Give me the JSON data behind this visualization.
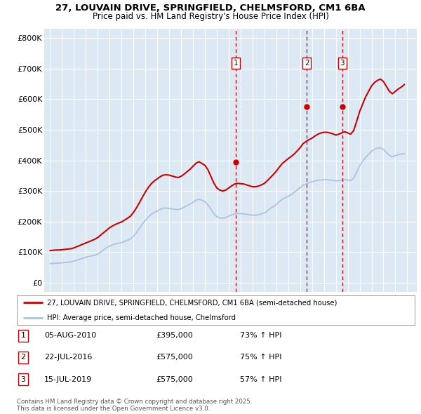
{
  "title_line1": "27, LOUVAIN DRIVE, SPRINGFIELD, CHELMSFORD, CM1 6BA",
  "title_line2": "Price paid vs. HM Land Registry's House Price Index (HPI)",
  "bg_color": "#dce9f5",
  "grid_color": "#ffffff",
  "red_line_color": "#cc0000",
  "blue_line_color": "#aac4e0",
  "ytick_labels": [
    "£0",
    "£100K",
    "£200K",
    "£300K",
    "£400K",
    "£500K",
    "£600K",
    "£700K",
    "£800K"
  ],
  "yticks": [
    0,
    100000,
    200000,
    300000,
    400000,
    500000,
    600000,
    700000,
    800000
  ],
  "xlim_start": 1994.5,
  "xlim_end": 2025.8,
  "ylim_min": -30000,
  "ylim_max": 830000,
  "sale_dates": [
    "05-AUG-2010",
    "22-JUL-2016",
    "15-JUL-2019"
  ],
  "sale_years": [
    2010.59,
    2016.55,
    2019.54
  ],
  "sale_prices": [
    395000,
    575000,
    575000
  ],
  "sale_prices_display": [
    "£395,000",
    "£575,000",
    "£575,000"
  ],
  "sale_labels": [
    "1",
    "2",
    "3"
  ],
  "sale_pct": [
    "73% ↑ HPI",
    "75% ↑ HPI",
    "57% ↑ HPI"
  ],
  "legend_red": "27, LOUVAIN DRIVE, SPRINGFIELD, CHELMSFORD, CM1 6BA (semi-detached house)",
  "legend_blue": "HPI: Average price, semi-detached house, Chelmsford",
  "footer": "Contains HM Land Registry data © Crown copyright and database right 2025.\nThis data is licensed under the Open Government Licence v3.0.",
  "hpi_years": [
    1995.0,
    1995.25,
    1995.5,
    1995.75,
    1996.0,
    1996.25,
    1996.5,
    1996.75,
    1997.0,
    1997.25,
    1997.5,
    1997.75,
    1998.0,
    1998.25,
    1998.5,
    1998.75,
    1999.0,
    1999.25,
    1999.5,
    1999.75,
    2000.0,
    2000.25,
    2000.5,
    2000.75,
    2001.0,
    2001.25,
    2001.5,
    2001.75,
    2002.0,
    2002.25,
    2002.5,
    2002.75,
    2003.0,
    2003.25,
    2003.5,
    2003.75,
    2004.0,
    2004.25,
    2004.5,
    2004.75,
    2005.0,
    2005.25,
    2005.5,
    2005.75,
    2006.0,
    2006.25,
    2006.5,
    2006.75,
    2007.0,
    2007.25,
    2007.5,
    2007.75,
    2008.0,
    2008.25,
    2008.5,
    2008.75,
    2009.0,
    2009.25,
    2009.5,
    2009.75,
    2010.0,
    2010.25,
    2010.5,
    2010.75,
    2011.0,
    2011.25,
    2011.5,
    2011.75,
    2012.0,
    2012.25,
    2012.5,
    2012.75,
    2013.0,
    2013.25,
    2013.5,
    2013.75,
    2014.0,
    2014.25,
    2014.5,
    2014.75,
    2015.0,
    2015.25,
    2015.5,
    2015.75,
    2016.0,
    2016.25,
    2016.5,
    2016.75,
    2017.0,
    2017.25,
    2017.5,
    2017.75,
    2018.0,
    2018.25,
    2018.5,
    2018.75,
    2019.0,
    2019.25,
    2019.5,
    2019.75,
    2020.0,
    2020.25,
    2020.5,
    2020.75,
    2021.0,
    2021.25,
    2021.5,
    2021.75,
    2022.0,
    2022.25,
    2022.5,
    2022.75,
    2023.0,
    2023.25,
    2023.5,
    2023.75,
    2024.0,
    2024.25,
    2024.5,
    2024.75
  ],
  "hpi_values": [
    62000,
    63000,
    63500,
    64000,
    65000,
    66000,
    67000,
    68000,
    71000,
    74000,
    77000,
    80000,
    83000,
    86000,
    88000,
    90000,
    94000,
    100000,
    108000,
    115000,
    120000,
    124000,
    127000,
    129000,
    131000,
    135000,
    139000,
    143000,
    152000,
    164000,
    178000,
    192000,
    205000,
    215000,
    224000,
    230000,
    234000,
    240000,
    244000,
    244000,
    243000,
    241000,
    240000,
    239000,
    242000,
    247000,
    252000,
    257000,
    263000,
    270000,
    273000,
    270000,
    265000,
    255000,
    241000,
    226000,
    216000,
    212000,
    211000,
    213000,
    218000,
    222000,
    225000,
    226000,
    226000,
    225000,
    224000,
    222000,
    221000,
    221000,
    222000,
    225000,
    228000,
    235000,
    243000,
    249000,
    256000,
    265000,
    273000,
    278000,
    283000,
    288000,
    296000,
    303000,
    311000,
    319000,
    323000,
    327000,
    330000,
    333000,
    335000,
    336000,
    337000,
    337000,
    336000,
    335000,
    333000,
    334000,
    336000,
    337000,
    336000,
    334000,
    342000,
    362000,
    383000,
    397000,
    410000,
    420000,
    430000,
    437000,
    440000,
    441000,
    436000,
    426000,
    416000,
    412000,
    416000,
    419000,
    421000,
    422000
  ],
  "property_years": [
    1995.0,
    1995.25,
    1995.5,
    1995.75,
    1996.0,
    1996.25,
    1996.5,
    1996.75,
    1997.0,
    1997.25,
    1997.5,
    1997.75,
    1998.0,
    1998.25,
    1998.5,
    1998.75,
    1999.0,
    1999.25,
    1999.5,
    1999.75,
    2000.0,
    2000.25,
    2000.5,
    2000.75,
    2001.0,
    2001.25,
    2001.5,
    2001.75,
    2002.0,
    2002.25,
    2002.5,
    2002.75,
    2003.0,
    2003.25,
    2003.5,
    2003.75,
    2004.0,
    2004.25,
    2004.5,
    2004.75,
    2005.0,
    2005.25,
    2005.5,
    2005.75,
    2006.0,
    2006.25,
    2006.5,
    2006.75,
    2007.0,
    2007.25,
    2007.5,
    2007.75,
    2008.0,
    2008.25,
    2008.5,
    2008.75,
    2009.0,
    2009.25,
    2009.5,
    2009.75,
    2010.0,
    2010.25,
    2010.5,
    2010.75,
    2011.0,
    2011.25,
    2011.5,
    2011.75,
    2012.0,
    2012.25,
    2012.5,
    2012.75,
    2013.0,
    2013.25,
    2013.5,
    2013.75,
    2014.0,
    2014.25,
    2014.5,
    2014.75,
    2015.0,
    2015.25,
    2015.5,
    2015.75,
    2016.0,
    2016.25,
    2016.5,
    2016.75,
    2017.0,
    2017.25,
    2017.5,
    2017.75,
    2018.0,
    2018.25,
    2018.5,
    2018.75,
    2019.0,
    2019.25,
    2019.5,
    2019.75,
    2020.0,
    2020.25,
    2020.5,
    2020.75,
    2021.0,
    2021.25,
    2021.5,
    2021.75,
    2022.0,
    2022.25,
    2022.5,
    2022.75,
    2023.0,
    2023.25,
    2023.5,
    2023.75,
    2024.0,
    2024.25,
    2024.5,
    2024.75
  ],
  "property_values": [
    105000,
    106000,
    107000,
    107000,
    108000,
    109000,
    110000,
    111000,
    114000,
    118000,
    122000,
    126000,
    130000,
    134000,
    138000,
    142000,
    148000,
    156000,
    164000,
    172000,
    180000,
    186000,
    191000,
    195000,
    199000,
    205000,
    211000,
    218000,
    230000,
    245000,
    262000,
    280000,
    297000,
    312000,
    324000,
    333000,
    340000,
    347000,
    352000,
    353000,
    352000,
    349000,
    346000,
    344000,
    348000,
    355000,
    363000,
    371000,
    381000,
    391000,
    396000,
    390000,
    384000,
    370000,
    348000,
    326000,
    310000,
    303000,
    300000,
    303000,
    310000,
    317000,
    323000,
    325000,
    324000,
    323000,
    320000,
    317000,
    314000,
    314000,
    316000,
    320000,
    325000,
    334000,
    344000,
    354000,
    365000,
    378000,
    390000,
    398000,
    406000,
    413000,
    421000,
    431000,
    442000,
    455000,
    462000,
    468000,
    473000,
    480000,
    486000,
    490000,
    492000,
    492000,
    490000,
    487000,
    483000,
    486000,
    490000,
    494000,
    490000,
    486000,
    498000,
    528000,
    560000,
    584000,
    608000,
    626000,
    644000,
    655000,
    662000,
    666000,
    658000,
    642000,
    626000,
    618000,
    626000,
    634000,
    640000,
    648000
  ]
}
